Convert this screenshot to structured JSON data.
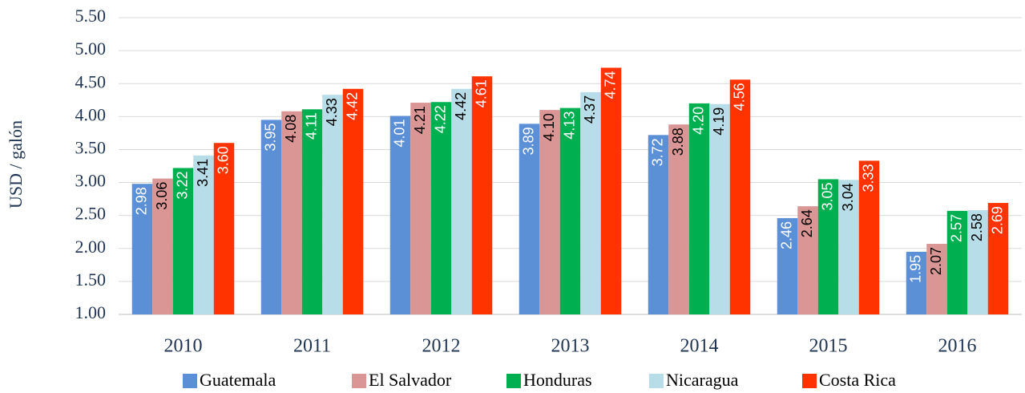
{
  "chart_data": {
    "type": "bar",
    "ylabel": "USD / galón",
    "categories": [
      "2010",
      "2011",
      "2012",
      "2013",
      "2014",
      "2015",
      "2016"
    ],
    "series": [
      {
        "name": "Guatemala",
        "color": "#5b8fd6",
        "label_color": "#ffffff",
        "values": [
          2.98,
          3.95,
          4.01,
          3.89,
          3.72,
          2.46,
          1.95
        ],
        "value_labels": [
          "2.98",
          "3.95",
          "4.01",
          "3.89",
          "3.72",
          "2.46",
          "1.95"
        ]
      },
      {
        "name": "El Salvador",
        "color": "#d99694",
        "label_color": "#000000",
        "values": [
          3.06,
          4.08,
          4.21,
          4.1,
          3.88,
          2.64,
          2.07
        ],
        "value_labels": [
          "3.06",
          "4.08",
          "4.21",
          "4.10",
          "3.88",
          "2.64",
          "2.07"
        ]
      },
      {
        "name": "Honduras",
        "color": "#00b050",
        "label_color": "#ffffff",
        "values": [
          3.22,
          4.11,
          4.22,
          4.13,
          4.2,
          3.05,
          2.57
        ],
        "value_labels": [
          "3.22",
          "4.11",
          "4.22",
          "4.13",
          "4.20",
          "3.05",
          "2.57"
        ]
      },
      {
        "name": "Nicaragua",
        "color": "#b7dee8",
        "label_color": "#000000",
        "values": [
          3.41,
          4.33,
          4.42,
          4.37,
          4.19,
          3.04,
          2.58
        ],
        "value_labels": [
          "3.41",
          "4.33",
          "4.42",
          "4.37",
          "4.19",
          "3.04",
          "2.58"
        ]
      },
      {
        "name": "Costa Rica",
        "color": "#ff3300",
        "label_color": "#ffffff",
        "values": [
          3.6,
          4.42,
          4.61,
          4.74,
          4.56,
          3.33,
          2.69
        ],
        "value_labels": [
          "3.60",
          "4.42",
          "4.61",
          "4.74",
          "4.56",
          "3.33",
          "2.69"
        ]
      }
    ],
    "ylim": [
      1,
      5.5
    ],
    "yticks": [
      {
        "value": 1,
        "label": "1.00"
      },
      {
        "value": 1.5,
        "label": "1.50"
      },
      {
        "value": 2,
        "label": "2.00"
      },
      {
        "value": 2.5,
        "label": "2.50"
      },
      {
        "value": 3,
        "label": "3.00"
      },
      {
        "value": 3.5,
        "label": "3.50"
      },
      {
        "value": 4,
        "label": "4.00"
      },
      {
        "value": 4.5,
        "label": "4.50"
      },
      {
        "value": 5,
        "label": "5.00"
      },
      {
        "value": 5.5,
        "label": "5.50"
      }
    ],
    "grid": true,
    "legend": "bottom"
  }
}
